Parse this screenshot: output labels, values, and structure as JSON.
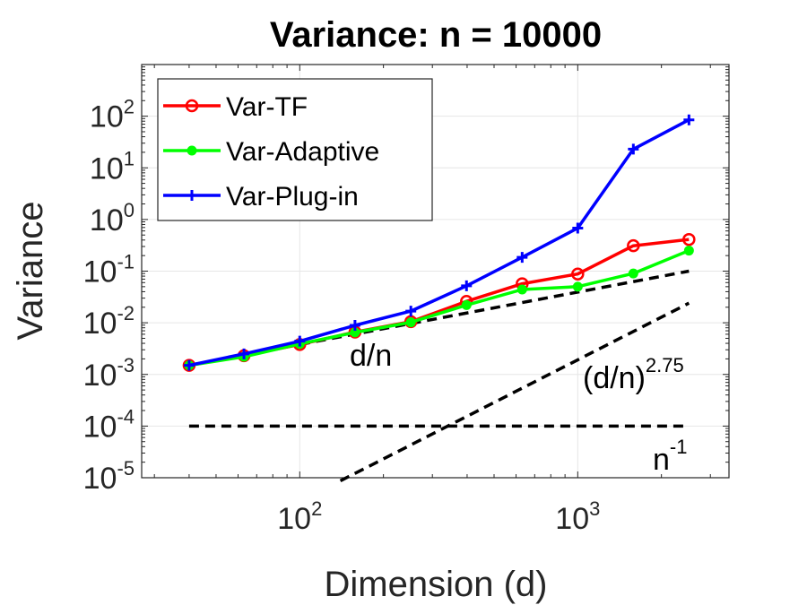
{
  "chart_data": {
    "type": "line",
    "title": "Variance: n = 10000",
    "xlabel": "Dimension (d)",
    "ylabel": "Variance",
    "xscale": "log",
    "yscale": "log",
    "xlim": [
      27,
      3500
    ],
    "ylim": [
      1e-05,
      1000
    ],
    "grid": true,
    "legend_position": "top-left",
    "x_ticks": [
      {
        "base": "10",
        "exp": "2",
        "value": 100
      },
      {
        "base": "10",
        "exp": "3",
        "value": 1000
      }
    ],
    "y_ticks": [
      {
        "base": "10",
        "exp": "-5",
        "value": 1e-05
      },
      {
        "base": "10",
        "exp": "-4",
        "value": 0.0001
      },
      {
        "base": "10",
        "exp": "-3",
        "value": 0.001
      },
      {
        "base": "10",
        "exp": "-2",
        "value": 0.01
      },
      {
        "base": "10",
        "exp": "-1",
        "value": 0.1
      },
      {
        "base": "10",
        "exp": "0",
        "value": 1
      },
      {
        "base": "10",
        "exp": "1",
        "value": 10
      },
      {
        "base": "10",
        "exp": "2",
        "value": 100
      }
    ],
    "x": [
      40,
      63,
      100,
      158,
      251,
      398,
      631,
      1000,
      1585,
      2512
    ],
    "series": [
      {
        "name": "Var-TF",
        "color": "#ff0000",
        "marker": "circle",
        "values": [
          0.0015,
          0.0023,
          0.0038,
          0.0066,
          0.0105,
          0.026,
          0.057,
          0.088,
          0.31,
          0.41
        ]
      },
      {
        "name": "Var-Adaptive",
        "color": "#00ff00",
        "marker": "dot",
        "values": [
          0.0015,
          0.0022,
          0.0039,
          0.0065,
          0.0102,
          0.022,
          0.044,
          0.05,
          0.09,
          0.25
        ]
      },
      {
        "name": "Var-Plug-in",
        "color": "#0000ff",
        "marker": "plus",
        "values": [
          0.0015,
          0.0025,
          0.0044,
          0.0089,
          0.0168,
          0.052,
          0.185,
          0.68,
          23,
          85
        ]
      }
    ],
    "reference_lines": [
      {
        "name": "d/n",
        "label": "d/n",
        "exponent": "",
        "style": "dashed",
        "color": "#000000",
        "x": [
          40,
          2512
        ],
        "y": [
          0.0015,
          0.1
        ]
      },
      {
        "name": "(d/n)^2.75",
        "label": "(d/n)",
        "exponent": "2.75",
        "style": "dashed",
        "color": "#000000",
        "x": [
          140,
          2512
        ],
        "y": [
          8.7e-06,
          0.024
        ]
      },
      {
        "name": "n^-1",
        "label": "n",
        "exponent": "-1",
        "style": "dashed",
        "color": "#000000",
        "x": [
          40,
          2512
        ],
        "y": [
          0.0001,
          0.0001
        ]
      }
    ]
  }
}
